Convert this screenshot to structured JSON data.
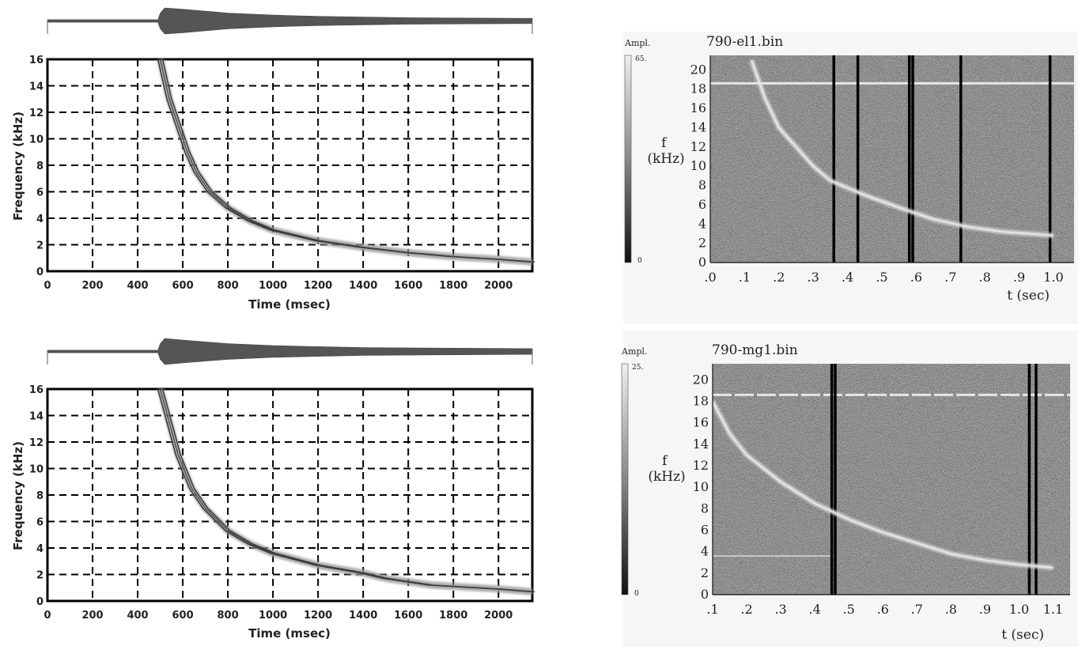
{
  "chart_data": [
    {
      "type": "heatmap",
      "panel": "simulated-top",
      "xlabel": "Time (msec)",
      "ylabel": "Frequency (kHz)",
      "xticks": [
        "0",
        "200",
        "400",
        "600",
        "800",
        "1000",
        "1200",
        "1400",
        "1600",
        "1800",
        "2000"
      ],
      "yticks": [
        "0",
        "2",
        "4",
        "6",
        "8",
        "10",
        "12",
        "14",
        "16"
      ],
      "xlim": [
        0,
        2150
      ],
      "ylim": [
        0,
        16
      ],
      "grid": true,
      "whistler_trace": [
        [
          500,
          16
        ],
        [
          540,
          13
        ],
        [
          580,
          11
        ],
        [
          620,
          9
        ],
        [
          660,
          7.5
        ],
        [
          720,
          6
        ],
        [
          800,
          4.8
        ],
        [
          900,
          3.8
        ],
        [
          1000,
          3.1
        ],
        [
          1200,
          2.3
        ],
        [
          1400,
          1.8
        ],
        [
          1600,
          1.4
        ],
        [
          1800,
          1.1
        ],
        [
          2000,
          0.9
        ],
        [
          2150,
          0.7
        ]
      ],
      "envelope": [
        [
          0,
          0.1
        ],
        [
          490,
          0.1
        ],
        [
          500,
          0.6
        ],
        [
          520,
          1.0
        ],
        [
          600,
          0.9
        ],
        [
          700,
          0.75
        ],
        [
          800,
          0.6
        ],
        [
          1000,
          0.45
        ],
        [
          1200,
          0.35
        ],
        [
          1600,
          0.25
        ],
        [
          2150,
          0.2
        ]
      ]
    },
    {
      "type": "heatmap",
      "panel": "observed-top",
      "title": "790-el1.bin",
      "xlabel": "t (sec)",
      "ylabel": "f\n(kHz)",
      "xticks": [
        ".0",
        ".1",
        ".2",
        ".3",
        ".4",
        ".5",
        ".6",
        ".7",
        ".8",
        ".9",
        "1.0"
      ],
      "yticks": [
        "0",
        "2",
        "4",
        "6",
        "8",
        "10",
        "12",
        "14",
        "16",
        "18",
        "20"
      ],
      "xlim": [
        0,
        1.06
      ],
      "ylim": [
        0,
        21.5
      ],
      "colorbar": {
        "label": "Ampl.",
        "max": "65.",
        "min": "0"
      },
      "whistler_trace": [
        [
          0.12,
          21
        ],
        [
          0.16,
          17
        ],
        [
          0.2,
          14
        ],
        [
          0.25,
          12
        ],
        [
          0.3,
          10
        ],
        [
          0.35,
          8.5
        ],
        [
          0.45,
          7
        ],
        [
          0.55,
          5.7
        ],
        [
          0.65,
          4.5
        ],
        [
          0.75,
          3.7
        ],
        [
          0.85,
          3.2
        ],
        [
          1.0,
          2.8
        ]
      ],
      "line_interference_khz": 18.6,
      "impulses_sec": [
        0.36,
        0.43,
        0.58,
        0.59,
        0.73,
        0.99
      ]
    },
    {
      "type": "heatmap",
      "panel": "simulated-bottom",
      "xlabel": "Time (msec)",
      "ylabel": "Frequency (kHz)",
      "xticks": [
        "0",
        "200",
        "400",
        "600",
        "800",
        "1000",
        "1200",
        "1400",
        "1600",
        "1800",
        "2000"
      ],
      "yticks": [
        "0",
        "2",
        "4",
        "6",
        "8",
        "10",
        "12",
        "14",
        "16"
      ],
      "xlim": [
        0,
        2150
      ],
      "ylim": [
        0,
        16
      ],
      "grid": true,
      "whistler_trace": [
        [
          500,
          16
        ],
        [
          540,
          13.5
        ],
        [
          580,
          11
        ],
        [
          640,
          8.5
        ],
        [
          700,
          7
        ],
        [
          800,
          5.3
        ],
        [
          900,
          4.3
        ],
        [
          1000,
          3.6
        ],
        [
          1200,
          2.7
        ],
        [
          1400,
          2.1
        ],
        [
          1500,
          1.7
        ],
        [
          1700,
          1.2
        ],
        [
          2000,
          0.9
        ],
        [
          2150,
          0.7
        ]
      ],
      "envelope": [
        [
          0,
          0.1
        ],
        [
          490,
          0.1
        ],
        [
          500,
          0.6
        ],
        [
          520,
          1.0
        ],
        [
          620,
          0.85
        ],
        [
          800,
          0.6
        ],
        [
          1000,
          0.45
        ],
        [
          1400,
          0.3
        ],
        [
          2150,
          0.22
        ]
      ]
    },
    {
      "type": "heatmap",
      "panel": "observed-bottom",
      "title": "790-mg1.bin",
      "xlabel": "t (sec)",
      "ylabel": "f\n(kHz)",
      "xticks": [
        ".1",
        ".2",
        ".3",
        ".4",
        ".5",
        ".6",
        ".7",
        ".8",
        ".9",
        "1.0",
        "1.1"
      ],
      "yticks": [
        "0",
        "2",
        "4",
        "6",
        "8",
        "10",
        "12",
        "14",
        "16",
        "18",
        "20"
      ],
      "xlim": [
        0.1,
        1.15
      ],
      "ylim": [
        0,
        21.5
      ],
      "colorbar": {
        "label": "Ampl.",
        "max": "25.",
        "min": "0"
      },
      "whistler_trace": [
        [
          0.1,
          18
        ],
        [
          0.15,
          15
        ],
        [
          0.2,
          13
        ],
        [
          0.3,
          10.5
        ],
        [
          0.4,
          8.5
        ],
        [
          0.5,
          7
        ],
        [
          0.6,
          5.8
        ],
        [
          0.7,
          4.8
        ],
        [
          0.8,
          3.8
        ],
        [
          0.9,
          3.2
        ],
        [
          1.0,
          2.8
        ],
        [
          1.1,
          2.5
        ]
      ],
      "line_interference_khz": 18.6,
      "line_interference_low_khz": 3.6,
      "impulses_sec": [
        0.45,
        0.46,
        1.03,
        1.05
      ]
    }
  ]
}
